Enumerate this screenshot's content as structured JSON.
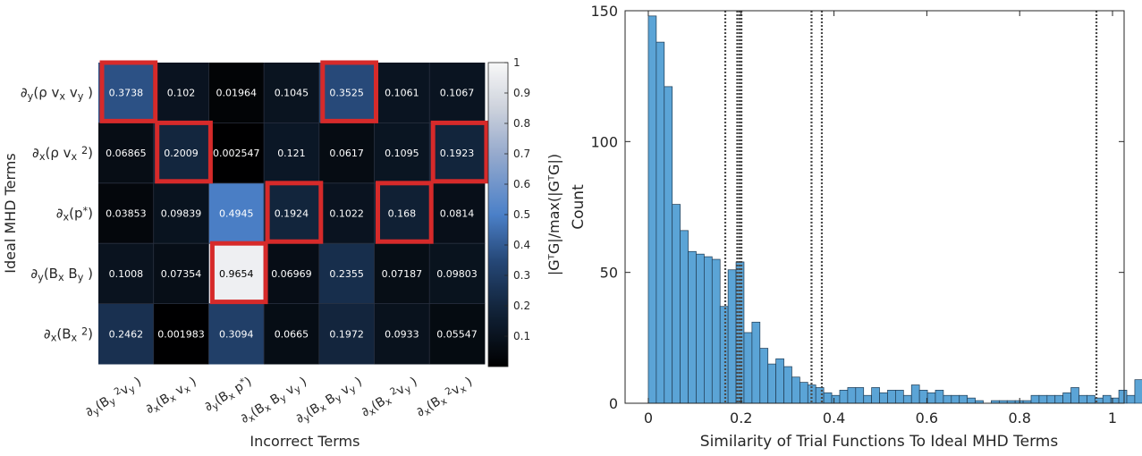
{
  "chart_data": [
    {
      "type": "heatmap",
      "xlabel": "Incorrect Terms",
      "ylabel": "Ideal MHD Terms",
      "colorbar_label": "|G^TG|/max(|G^TG|)",
      "colorbar_ticks": [
        0.1,
        0.2,
        0.3,
        0.4,
        0.5,
        0.6,
        0.7,
        0.8,
        0.9,
        1
      ],
      "colorbar_tick_labels": [
        "0.1",
        "0.2",
        "0.3",
        "0.4",
        "0.5",
        "0.6",
        "0.7",
        "0.8",
        "0.9",
        "1"
      ],
      "clim": [
        0,
        1
      ],
      "rows": [
        {
          "pre": "∂",
          "sub": "y",
          "rest": [
            [
              "(ρ v",
              ""
            ],
            [
              "x",
              "sub"
            ],
            [
              " v",
              ""
            ],
            [
              "y",
              "sub"
            ],
            [
              " )",
              ""
            ]
          ]
        },
        {
          "pre": "∂",
          "sub": "x",
          "rest": [
            [
              "(ρ v",
              ""
            ],
            [
              "x",
              "sub"
            ],
            [
              " ",
              ""
            ],
            [
              "2",
              "sup"
            ],
            [
              ")",
              ""
            ]
          ]
        },
        {
          "pre": "∂",
          "sub": "x",
          "rest": [
            [
              "(p",
              ""
            ],
            [
              "*",
              "sup"
            ],
            [
              ")",
              ""
            ]
          ]
        },
        {
          "pre": "∂",
          "sub": "y",
          "rest": [
            [
              "(B",
              ""
            ],
            [
              "x",
              "sub"
            ],
            [
              " B",
              ""
            ],
            [
              "y",
              "sub"
            ],
            [
              " )",
              ""
            ]
          ]
        },
        {
          "pre": "∂",
          "sub": "x",
          "rest": [
            [
              "(B",
              ""
            ],
            [
              "x",
              "sub"
            ],
            [
              " ",
              ""
            ],
            [
              "2",
              "sup"
            ],
            [
              ")",
              ""
            ]
          ]
        }
      ],
      "columns": [
        {
          "pre": "∂",
          "sub": "y",
          "rest": [
            [
              "(B",
              ""
            ],
            [
              "y",
              "sub"
            ],
            [
              " ",
              ""
            ],
            [
              "2",
              "sup"
            ],
            [
              "v",
              ""
            ],
            [
              "y",
              "sub"
            ],
            [
              " )",
              ""
            ]
          ]
        },
        {
          "pre": "∂",
          "sub": "x",
          "rest": [
            [
              "(B",
              ""
            ],
            [
              "x",
              "sub"
            ],
            [
              " v",
              ""
            ],
            [
              "x",
              "sub"
            ],
            [
              " )",
              ""
            ]
          ]
        },
        {
          "pre": "∂",
          "sub": "y",
          "rest": [
            [
              "(B",
              ""
            ],
            [
              "x",
              "sub"
            ],
            [
              " p",
              ""
            ],
            [
              "*",
              "sup"
            ],
            [
              ")",
              ""
            ]
          ]
        },
        {
          "pre": "∂",
          "sub": "x",
          "rest": [
            [
              "(B",
              ""
            ],
            [
              "x",
              "sub"
            ],
            [
              " B",
              ""
            ],
            [
              "y",
              "sub"
            ],
            [
              " v",
              ""
            ],
            [
              "y",
              "sub"
            ],
            [
              " )",
              ""
            ]
          ]
        },
        {
          "pre": "∂",
          "sub": "y",
          "rest": [
            [
              "(B",
              ""
            ],
            [
              "x",
              "sub"
            ],
            [
              " B",
              ""
            ],
            [
              "y",
              "sub"
            ],
            [
              " v",
              ""
            ],
            [
              "y",
              "sub"
            ],
            [
              " )",
              ""
            ]
          ]
        },
        {
          "pre": "∂",
          "sub": "x",
          "rest": [
            [
              "(B",
              ""
            ],
            [
              "x",
              "sub"
            ],
            [
              " ",
              ""
            ],
            [
              "2",
              "sup"
            ],
            [
              "v",
              ""
            ],
            [
              "y",
              "sub"
            ],
            [
              " )",
              ""
            ]
          ]
        },
        {
          "pre": "∂",
          "sub": "x",
          "rest": [
            [
              "(B",
              ""
            ],
            [
              "x",
              "sub"
            ],
            [
              " ",
              ""
            ],
            [
              "2",
              "sup"
            ],
            [
              "v",
              ""
            ],
            [
              "x",
              "sub"
            ],
            [
              " )",
              ""
            ]
          ]
        }
      ],
      "values": [
        [
          "0.3738",
          "0.102",
          "0.01964",
          "0.1045",
          "0.3525",
          "0.1061",
          "0.1067"
        ],
        [
          "0.06865",
          "0.2009",
          "0.002547",
          "0.121",
          "0.0617",
          "0.1095",
          "0.1923"
        ],
        [
          "0.03853",
          "0.09839",
          "0.4945",
          "0.1924",
          "0.1022",
          "0.168",
          "0.0814"
        ],
        [
          "0.1008",
          "0.07354",
          "0.9654",
          "0.06969",
          "0.2355",
          "0.07187",
          "0.09803"
        ],
        [
          "0.2462",
          "0.001983",
          "0.3094",
          "0.0665",
          "0.1972",
          "0.0933",
          "0.05547"
        ]
      ],
      "highlighted_cells": [
        [
          0,
          0
        ],
        [
          0,
          4
        ],
        [
          1,
          1
        ],
        [
          1,
          6
        ],
        [
          2,
          3
        ],
        [
          2,
          5
        ],
        [
          3,
          2
        ]
      ],
      "highlight_color": "#d62a2a"
    },
    {
      "type": "bar",
      "subtype": "histogram",
      "xlabel": "Similarity of Trial Functions To Ideal MHD Terms",
      "ylabel": "Count",
      "xlim": [
        -0.05,
        1.025
      ],
      "ylim": [
        0,
        150
      ],
      "xticks": [
        0,
        0.2,
        0.4,
        0.6,
        0.8,
        1
      ],
      "xtick_labels": [
        "0",
        "0.2",
        "0.4",
        "0.6",
        "0.8",
        "1"
      ],
      "yticks": [
        0,
        50,
        100,
        150
      ],
      "ytick_labels": [
        "0",
        "50",
        "100",
        "150"
      ],
      "bin_width": 0.01718,
      "bin_start": 0,
      "counts": [
        148,
        138,
        121,
        76,
        66,
        58,
        57,
        56,
        55,
        37,
        51,
        54,
        27,
        31,
        21,
        15,
        17,
        14,
        10,
        8,
        7,
        6,
        4,
        3,
        5,
        6,
        6,
        3,
        6,
        4,
        5,
        5,
        3,
        7,
        5,
        4,
        5,
        3,
        3,
        3,
        2,
        1,
        0,
        1,
        1,
        1,
        1,
        1,
        3,
        3,
        3,
        3,
        4,
        6,
        3,
        3,
        2,
        3,
        2,
        5,
        3,
        9,
        5,
        2,
        5,
        3,
        6,
        5,
        7
      ],
      "bar_color": "#5ba4d6",
      "reference_lines": [
        0.1658,
        0.1916,
        0.1963,
        0.2006,
        0.3516,
        0.3738,
        0.9654
      ]
    }
  ]
}
